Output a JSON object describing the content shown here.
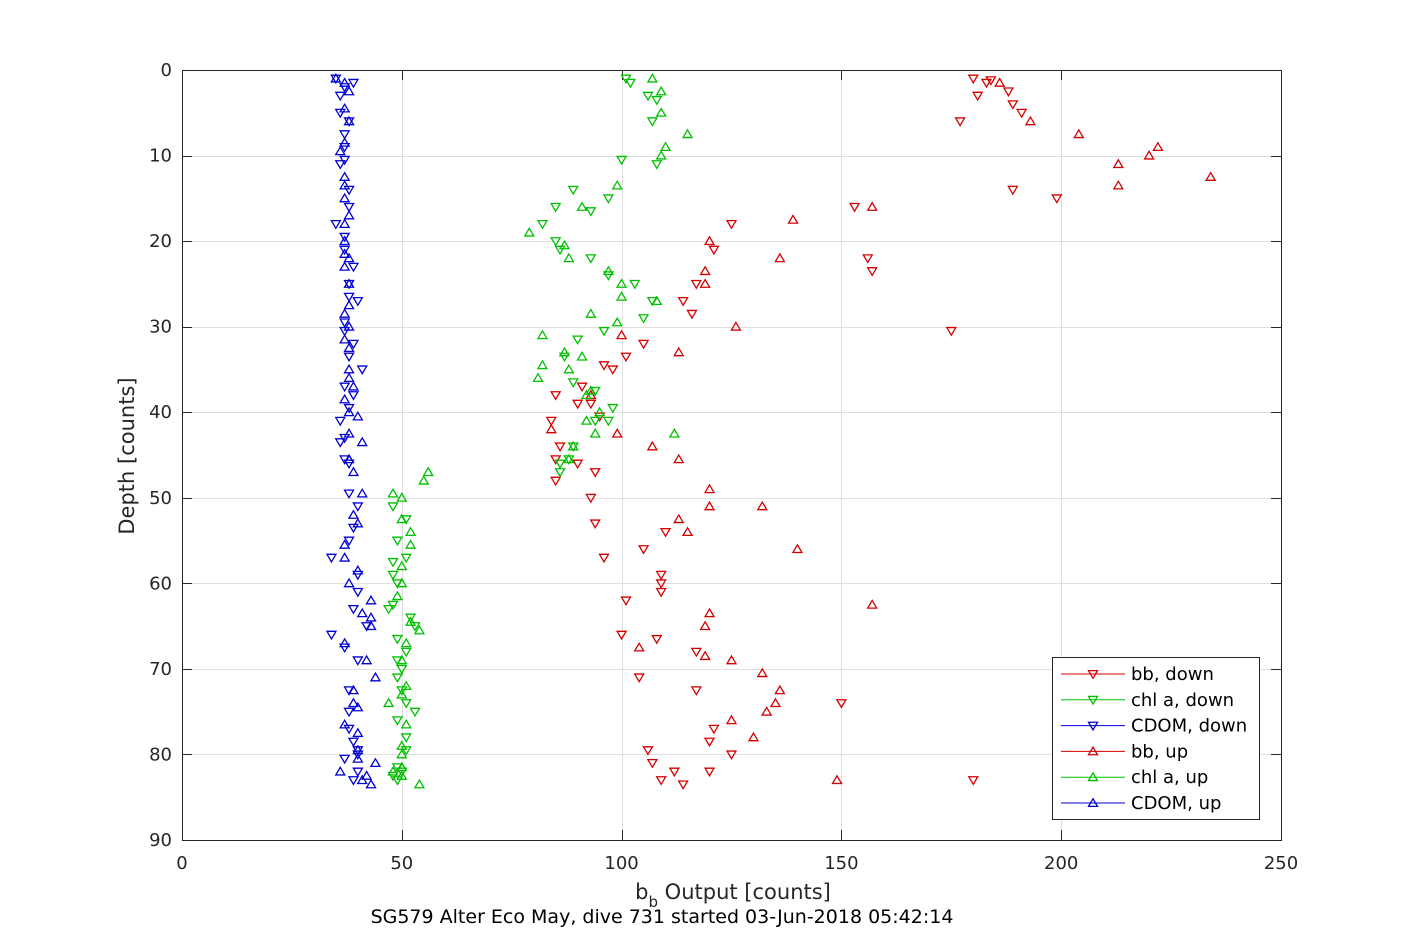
{
  "caption": "SG579 Alter Eco May, dive 731 started 03-Jun-2018 05:42:14",
  "chart_data": {
    "type": "scatter",
    "xlabel_main": "b",
    "xlabel_sub": "b",
    "xlabel_rest": " Output [counts]",
    "ylabel": "Depth [counts]",
    "xlim": [
      0,
      250
    ],
    "ylim": [
      0,
      90
    ],
    "y_reversed": true,
    "grid": true,
    "xticks": [
      0,
      50,
      100,
      150,
      200,
      250
    ],
    "yticks": [
      0,
      10,
      20,
      30,
      40,
      50,
      60,
      70,
      80,
      90
    ],
    "legend_position": "bottom-right",
    "series": [
      {
        "name": "bb, down",
        "color": "#d40000",
        "marker": "triangle-down",
        "points": [
          [
            180,
            1
          ],
          [
            181,
            3
          ],
          [
            183,
            1.5
          ],
          [
            184,
            1.2
          ],
          [
            177,
            6
          ],
          [
            188,
            2.5
          ],
          [
            189,
            4
          ],
          [
            191,
            5
          ],
          [
            189,
            14
          ],
          [
            199,
            15
          ],
          [
            153,
            16
          ],
          [
            125,
            18
          ],
          [
            121,
            21
          ],
          [
            156,
            22
          ],
          [
            157,
            23.5
          ],
          [
            117,
            25
          ],
          [
            114,
            27
          ],
          [
            116,
            28.5
          ],
          [
            175,
            30.5
          ],
          [
            105,
            32
          ],
          [
            101,
            33.5
          ],
          [
            96,
            34.5
          ],
          [
            98,
            35
          ],
          [
            91,
            37
          ],
          [
            85,
            38
          ],
          [
            93,
            39
          ],
          [
            90,
            39
          ],
          [
            95,
            40.5
          ],
          [
            84,
            41
          ],
          [
            86,
            44
          ],
          [
            85,
            45.5
          ],
          [
            90,
            46
          ],
          [
            94,
            47
          ],
          [
            85,
            48
          ],
          [
            93,
            50
          ],
          [
            94,
            53
          ],
          [
            110,
            54
          ],
          [
            105,
            56
          ],
          [
            96,
            57
          ],
          [
            109,
            59
          ],
          [
            109,
            60
          ],
          [
            109,
            61
          ],
          [
            101,
            62
          ],
          [
            100,
            66
          ],
          [
            108,
            66.5
          ],
          [
            117,
            68
          ],
          [
            104,
            71
          ],
          [
            117,
            72.5
          ],
          [
            121,
            77
          ],
          [
            120,
            78.5
          ],
          [
            125,
            80
          ],
          [
            107,
            81
          ],
          [
            106,
            79.5
          ],
          [
            112,
            82
          ],
          [
            109,
            83
          ],
          [
            120,
            82
          ],
          [
            114,
            83.5
          ],
          [
            180,
            83
          ],
          [
            150,
            74
          ]
        ]
      },
      {
        "name": "chl a, down",
        "color": "#00c000",
        "marker": "triangle-down",
        "points": [
          [
            101,
            1
          ],
          [
            102,
            1.5
          ],
          [
            106,
            3
          ],
          [
            108,
            3.5
          ],
          [
            107,
            6
          ],
          [
            100,
            10.5
          ],
          [
            108,
            11
          ],
          [
            89,
            14
          ],
          [
            97,
            15
          ],
          [
            93,
            16.5
          ],
          [
            85,
            16
          ],
          [
            82,
            18
          ],
          [
            85,
            20
          ],
          [
            86,
            21
          ],
          [
            93,
            22
          ],
          [
            97,
            24
          ],
          [
            103,
            25
          ],
          [
            107,
            27
          ],
          [
            105,
            29
          ],
          [
            96,
            30.5
          ],
          [
            90,
            31.5
          ],
          [
            87,
            33.5
          ],
          [
            89,
            36.5
          ],
          [
            94,
            37.5
          ],
          [
            98,
            39.5
          ],
          [
            94,
            41
          ],
          [
            97,
            41
          ],
          [
            89,
            44
          ],
          [
            86,
            46
          ],
          [
            88,
            45.5
          ],
          [
            86,
            47
          ],
          [
            48,
            51
          ],
          [
            51,
            52.5
          ],
          [
            49,
            55
          ],
          [
            48,
            59
          ],
          [
            49,
            60
          ],
          [
            48,
            62.5
          ],
          [
            47,
            63
          ],
          [
            53,
            65
          ],
          [
            49,
            66.5
          ],
          [
            51,
            68
          ],
          [
            49,
            69
          ],
          [
            50,
            70
          ],
          [
            50,
            72.5
          ],
          [
            51,
            74
          ],
          [
            49,
            76
          ],
          [
            51,
            78
          ],
          [
            51,
            79.5
          ],
          [
            49,
            81.5
          ],
          [
            50,
            82
          ],
          [
            48,
            82.5
          ],
          [
            49,
            83
          ],
          [
            53,
            75
          ],
          [
            49,
            71
          ],
          [
            51,
            57
          ],
          [
            48,
            57.5
          ],
          [
            52,
            64
          ]
        ]
      },
      {
        "name": "CDOM, down",
        "color": "#0000d0",
        "marker": "triangle-down",
        "points": [
          [
            35,
            1
          ],
          [
            37,
            2
          ],
          [
            39,
            1.5
          ],
          [
            36,
            3
          ],
          [
            36,
            5
          ],
          [
            37,
            7.5
          ],
          [
            38,
            6
          ],
          [
            37,
            9
          ],
          [
            37,
            10.5
          ],
          [
            36,
            11
          ],
          [
            38,
            14
          ],
          [
            38,
            16
          ],
          [
            35,
            18
          ],
          [
            37,
            19.5
          ],
          [
            37,
            21
          ],
          [
            39,
            23
          ],
          [
            38,
            25
          ],
          [
            38,
            26.5
          ],
          [
            40,
            27
          ],
          [
            37,
            29.5
          ],
          [
            37,
            30.5
          ],
          [
            39,
            32
          ],
          [
            38,
            33.5
          ],
          [
            41,
            35
          ],
          [
            37,
            37
          ],
          [
            39,
            38
          ],
          [
            38,
            39.5
          ],
          [
            36,
            41
          ],
          [
            37,
            43
          ],
          [
            36,
            43.5
          ],
          [
            37,
            45.5
          ],
          [
            38,
            46
          ],
          [
            38,
            49.5
          ],
          [
            40,
            51
          ],
          [
            39,
            53.5
          ],
          [
            38,
            55
          ],
          [
            34,
            57
          ],
          [
            40,
            59
          ],
          [
            40,
            61
          ],
          [
            39,
            63
          ],
          [
            42,
            65
          ],
          [
            37,
            67.5
          ],
          [
            34,
            66
          ],
          [
            40,
            69
          ],
          [
            38,
            72.5
          ],
          [
            38,
            75
          ],
          [
            38,
            77
          ],
          [
            39,
            78.5
          ],
          [
            40,
            80
          ],
          [
            40,
            79.5
          ],
          [
            37,
            80.5
          ],
          [
            40,
            82
          ],
          [
            39,
            83
          ]
        ]
      },
      {
        "name": "bb, up",
        "color": "#d40000",
        "marker": "triangle-up",
        "points": [
          [
            186,
            1.5
          ],
          [
            193,
            6
          ],
          [
            204,
            7.5
          ],
          [
            222,
            9
          ],
          [
            220,
            10
          ],
          [
            213,
            11
          ],
          [
            234,
            12.5
          ],
          [
            213,
            13.5
          ],
          [
            157,
            16
          ],
          [
            139,
            17.5
          ],
          [
            120,
            20
          ],
          [
            136,
            22
          ],
          [
            119,
            23.5
          ],
          [
            119,
            25
          ],
          [
            126,
            30
          ],
          [
            100,
            31
          ],
          [
            113,
            33
          ],
          [
            93,
            38
          ],
          [
            84,
            42
          ],
          [
            99,
            42.5
          ],
          [
            107,
            44
          ],
          [
            113,
            45.5
          ],
          [
            120,
            49
          ],
          [
            120,
            51
          ],
          [
            132,
            51
          ],
          [
            113,
            52.5
          ],
          [
            115,
            54
          ],
          [
            140,
            56
          ],
          [
            157,
            62.5
          ],
          [
            120,
            63.5
          ],
          [
            119,
            65
          ],
          [
            104,
            67.5
          ],
          [
            119,
            68.5
          ],
          [
            125,
            69
          ],
          [
            132,
            70.5
          ],
          [
            136,
            72.5
          ],
          [
            135,
            74
          ],
          [
            133,
            75
          ],
          [
            125,
            76
          ],
          [
            130,
            78
          ],
          [
            149,
            83
          ]
        ]
      },
      {
        "name": "chl a, up",
        "color": "#00c000",
        "marker": "triangle-up",
        "points": [
          [
            107,
            1
          ],
          [
            109,
            2.5
          ],
          [
            109,
            5
          ],
          [
            115,
            7.5
          ],
          [
            110,
            9
          ],
          [
            109,
            10
          ],
          [
            99,
            13.5
          ],
          [
            91,
            16
          ],
          [
            79,
            19
          ],
          [
            87,
            20.5
          ],
          [
            88,
            22
          ],
          [
            97,
            23.5
          ],
          [
            100,
            25
          ],
          [
            100,
            26.5
          ],
          [
            108,
            27
          ],
          [
            93,
            28.5
          ],
          [
            99,
            29.5
          ],
          [
            82,
            31
          ],
          [
            87,
            33
          ],
          [
            91,
            33.5
          ],
          [
            82,
            34.5
          ],
          [
            88,
            35
          ],
          [
            81,
            36
          ],
          [
            92,
            38
          ],
          [
            93,
            37.5
          ],
          [
            95,
            40
          ],
          [
            92,
            41
          ],
          [
            112,
            42.5
          ],
          [
            94,
            42.5
          ],
          [
            89,
            44
          ],
          [
            88,
            45.5
          ],
          [
            56,
            47
          ],
          [
            55,
            48
          ],
          [
            50,
            50
          ],
          [
            48,
            49.5
          ],
          [
            50,
            52.5
          ],
          [
            52,
            54
          ],
          [
            52,
            55.5
          ],
          [
            50,
            58
          ],
          [
            50,
            60
          ],
          [
            49,
            61.5
          ],
          [
            52,
            64.5
          ],
          [
            54,
            65.5
          ],
          [
            51,
            67
          ],
          [
            50,
            69
          ],
          [
            51,
            72
          ],
          [
            50,
            73
          ],
          [
            47,
            74
          ],
          [
            51,
            76.5
          ],
          [
            50,
            79
          ],
          [
            50,
            80
          ],
          [
            50,
            81.5
          ],
          [
            48,
            82
          ],
          [
            50,
            82.5
          ],
          [
            54,
            83.5
          ]
        ]
      },
      {
        "name": "CDOM, up",
        "color": "#0000d0",
        "marker": "triangle-up",
        "points": [
          [
            35,
            1
          ],
          [
            37,
            1.5
          ],
          [
            38,
            2.5
          ],
          [
            37,
            4.5
          ],
          [
            38,
            6
          ],
          [
            37,
            8.5
          ],
          [
            36,
            9.5
          ],
          [
            37,
            12.5
          ],
          [
            37,
            13.5
          ],
          [
            37,
            15
          ],
          [
            38,
            17
          ],
          [
            37,
            18
          ],
          [
            37,
            20
          ],
          [
            37,
            21.5
          ],
          [
            38,
            22
          ],
          [
            37,
            23
          ],
          [
            38,
            25
          ],
          [
            38,
            27.5
          ],
          [
            37,
            28.5
          ],
          [
            38,
            30
          ],
          [
            37,
            31.5
          ],
          [
            38,
            32.5
          ],
          [
            38,
            35
          ],
          [
            38,
            36
          ],
          [
            39,
            37
          ],
          [
            37,
            38.5
          ],
          [
            38,
            40
          ],
          [
            40,
            40.5
          ],
          [
            38,
            42.5
          ],
          [
            41,
            43.5
          ],
          [
            38,
            45.5
          ],
          [
            39,
            47
          ],
          [
            41,
            49.5
          ],
          [
            39,
            52
          ],
          [
            40,
            53
          ],
          [
            37,
            55.5
          ],
          [
            37,
            57
          ],
          [
            40,
            58.5
          ],
          [
            38,
            60
          ],
          [
            43,
            62
          ],
          [
            41,
            63.5
          ],
          [
            43,
            64
          ],
          [
            43,
            65
          ],
          [
            37,
            67
          ],
          [
            42,
            69
          ],
          [
            44,
            71
          ],
          [
            39,
            72.5
          ],
          [
            39,
            74
          ],
          [
            40,
            74.5
          ],
          [
            37,
            76.5
          ],
          [
            40,
            77.5
          ],
          [
            40,
            79.5
          ],
          [
            40,
            80.5
          ],
          [
            44,
            81
          ],
          [
            36,
            82
          ],
          [
            42,
            82.5
          ],
          [
            43,
            83.5
          ],
          [
            41,
            83
          ]
        ]
      }
    ]
  }
}
